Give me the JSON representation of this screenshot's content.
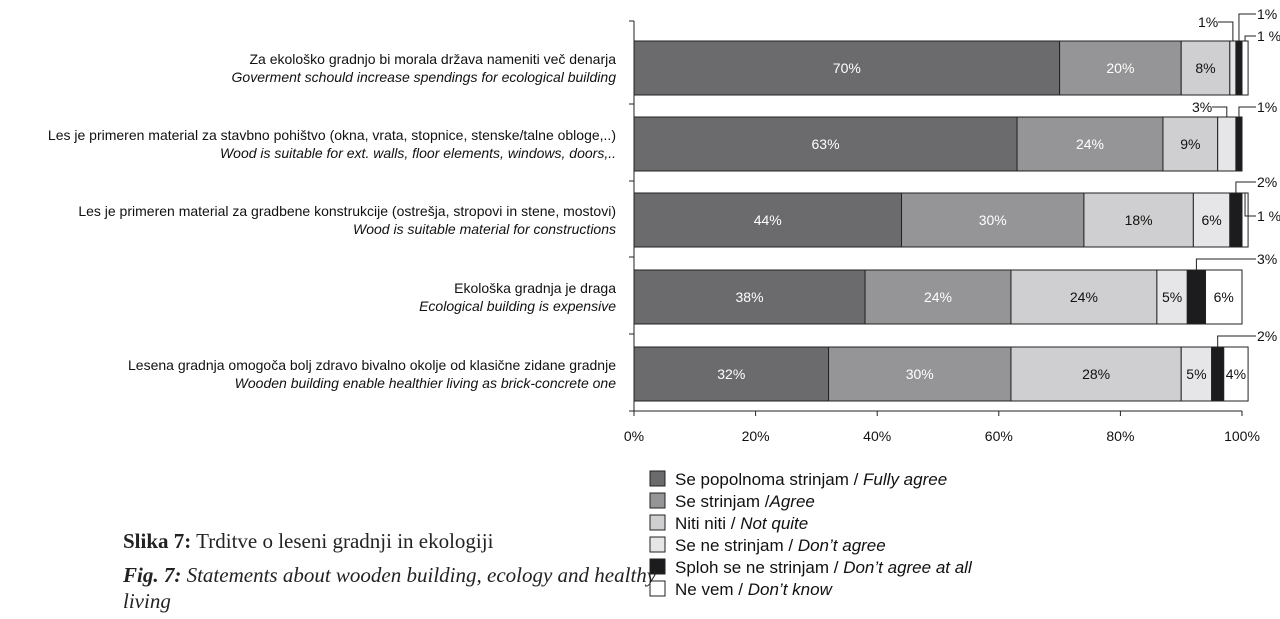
{
  "caption": {
    "sl_bold": "Slika 7:",
    "sl_text": " Trditve o leseni gradnji in ekologiji",
    "en_bold": "Fig. 7:",
    "en_text": " Statements about wooden building, ecology and healthy living"
  },
  "colors": {
    "fully_agree": "#6b6b6d",
    "agree": "#959597",
    "not_quite": "#cfcfd1",
    "dont_agree": "#e6e6e8",
    "dont_agree_at_all": "#1c1c1e",
    "dont_know": "#ffffff"
  },
  "chart_data": {
    "type": "bar",
    "orientation": "horizontal",
    "stacked": true,
    "xlim": [
      0,
      100
    ],
    "x_ticks": [
      "0%",
      "20%",
      "40%",
      "60%",
      "80%",
      "100%"
    ],
    "categories": [
      {
        "sl": "Za ekološko gradnjo bi morala država nameniti več denarja",
        "en": "Goverment schould increase spendings for ecological building"
      },
      {
        "sl": "Les je primeren material za stavbno pohištvo (okna, vrata, stopnice, stenske/talne obloge,..)",
        "en": "Wood is suitable for ext. walls, floor elements, windows, doors,.."
      },
      {
        "sl": "Les je primeren material za gradbene konstrukcije (ostrešja, stropovi in stene, mostovi)",
        "en": "Wood is suitable material for constructions"
      },
      {
        "sl": "Ekološka gradnja je draga",
        "en": "Ecological building is expensive"
      },
      {
        "sl": "Lesena gradnja omogoča bolj zdravo bivalno okolje od klasične zidane gradnje",
        "en": "Wooden building enable healthier living as brick-concrete one"
      }
    ],
    "series": [
      {
        "key": "fully_agree",
        "name_sl": "Se popolnoma strinjam / ",
        "name_en": "Fully agree",
        "values": [
          70,
          63,
          44,
          38,
          32
        ],
        "labels": [
          "70%",
          "63%",
          "44%",
          "38%",
          "32%"
        ]
      },
      {
        "key": "agree",
        "name_sl": "Se strinjam /",
        "name_en": "Agree",
        "values": [
          20,
          24,
          30,
          24,
          30
        ],
        "labels": [
          "20%",
          "24%",
          "30%",
          "24%",
          "30%"
        ]
      },
      {
        "key": "not_quite",
        "name_sl": "Niti niti / ",
        "name_en": "Not quite",
        "values": [
          8,
          9,
          18,
          24,
          28
        ],
        "labels": [
          "8%",
          "9%",
          "18%",
          "24%",
          "28%"
        ]
      },
      {
        "key": "dont_agree",
        "name_sl": "Se ne strinjam / ",
        "name_en": "Don’t agree",
        "values": [
          1,
          3,
          6,
          5,
          5
        ],
        "labels": [
          "1%",
          "3%",
          "6%",
          "5%",
          "5%"
        ]
      },
      {
        "key": "dont_agree_at_all",
        "name_sl": "Sploh se ne strinjam / ",
        "name_en": "Don’t agree at all",
        "values": [
          1,
          1,
          2,
          3,
          2
        ],
        "labels": [
          "1%",
          "1%",
          "2%",
          "3%",
          "2%"
        ]
      },
      {
        "key": "dont_know",
        "name_sl": "Ne vem / ",
        "name_en": "Don’t know",
        "values": [
          1,
          0,
          1,
          6,
          4
        ],
        "labels": [
          "1 %",
          "",
          "1 %",
          "6%",
          "4%"
        ]
      }
    ]
  }
}
